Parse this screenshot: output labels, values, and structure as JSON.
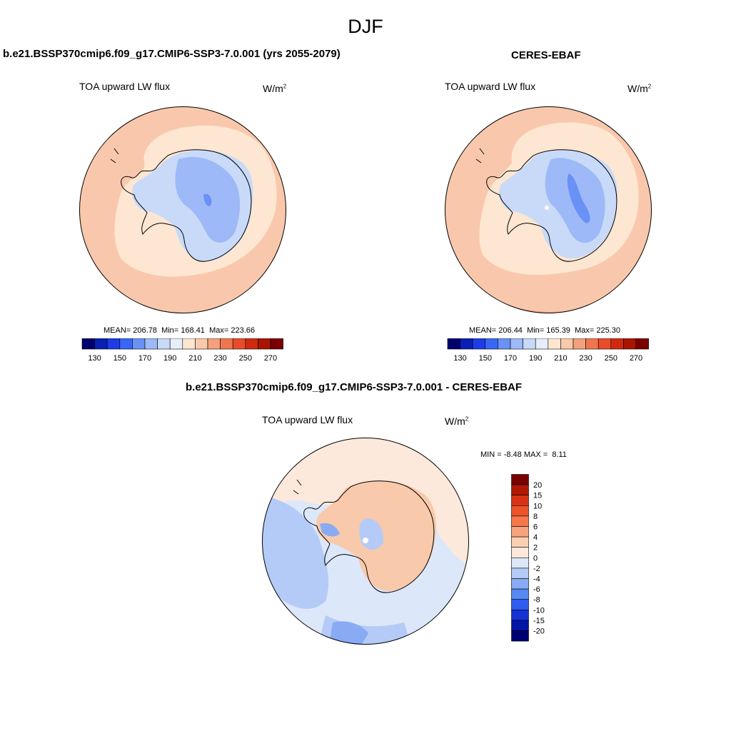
{
  "title": "DJF",
  "panels": {
    "model": {
      "title": "b.e21.BSSP370cmip6.f09_g17.CMIP6-SSP3-7.0.001 (yrs 2055-2079)",
      "variable": "TOA upward LW flux",
      "units_base": "W/m",
      "units_exp": "2",
      "stats": {
        "mean_label": "MEAN=",
        "mean": "206.78",
        "min_label": "Min=",
        "min": "168.41",
        "max_label": "Max=",
        "max": "223.66"
      }
    },
    "obs": {
      "title": "CERES-EBAF",
      "variable": "TOA upward LW flux",
      "units_base": "W/m",
      "units_exp": "2",
      "stats": {
        "mean_label": "MEAN=",
        "mean": "206.44",
        "min_label": "Min=",
        "min": "165.39",
        "max_label": "Max=",
        "max": "225.30"
      }
    },
    "diff": {
      "title": "b.e21.BSSP370cmip6.f09_g17.CMIP6-SSP3-7.0.001 - CERES-EBAF",
      "variable": "TOA upward LW flux",
      "units_base": "W/m",
      "units_exp": "2",
      "stats": {
        "min_label": "MIN =",
        "min": "-8.48",
        "max_label": "MAX =",
        "max": "8.11"
      }
    }
  },
  "colorbar_abs": {
    "colors": [
      "#00006e",
      "#0a1fb4",
      "#1e3ce6",
      "#3a66f5",
      "#6a91f5",
      "#9db9f7",
      "#c8daf8",
      "#e6eefb",
      "#fde6d2",
      "#f8c9aa",
      "#f4a07c",
      "#f07650",
      "#ea4c2a",
      "#cf2a10",
      "#a81400",
      "#7a0000"
    ],
    "tick_labels": [
      "130",
      "150",
      "170",
      "190",
      "210",
      "230",
      "250",
      "270"
    ]
  },
  "colorbar_diff": {
    "colors": [
      "#7a0000",
      "#b01804",
      "#d83214",
      "#ee5428",
      "#f5784a",
      "#f8a27e",
      "#fbcfb4",
      "#fde9dc",
      "#dce7fa",
      "#b4cbf7",
      "#88abf4",
      "#5888f2",
      "#2f5df0",
      "#1433d2",
      "#0416a6",
      "#000072"
    ],
    "tick_labels": [
      "20",
      "15",
      "10",
      "8",
      "6",
      "4",
      "2",
      "0",
      "-2",
      "-4",
      "-6",
      "-8",
      "-10",
      "-15",
      "-20"
    ]
  }
}
